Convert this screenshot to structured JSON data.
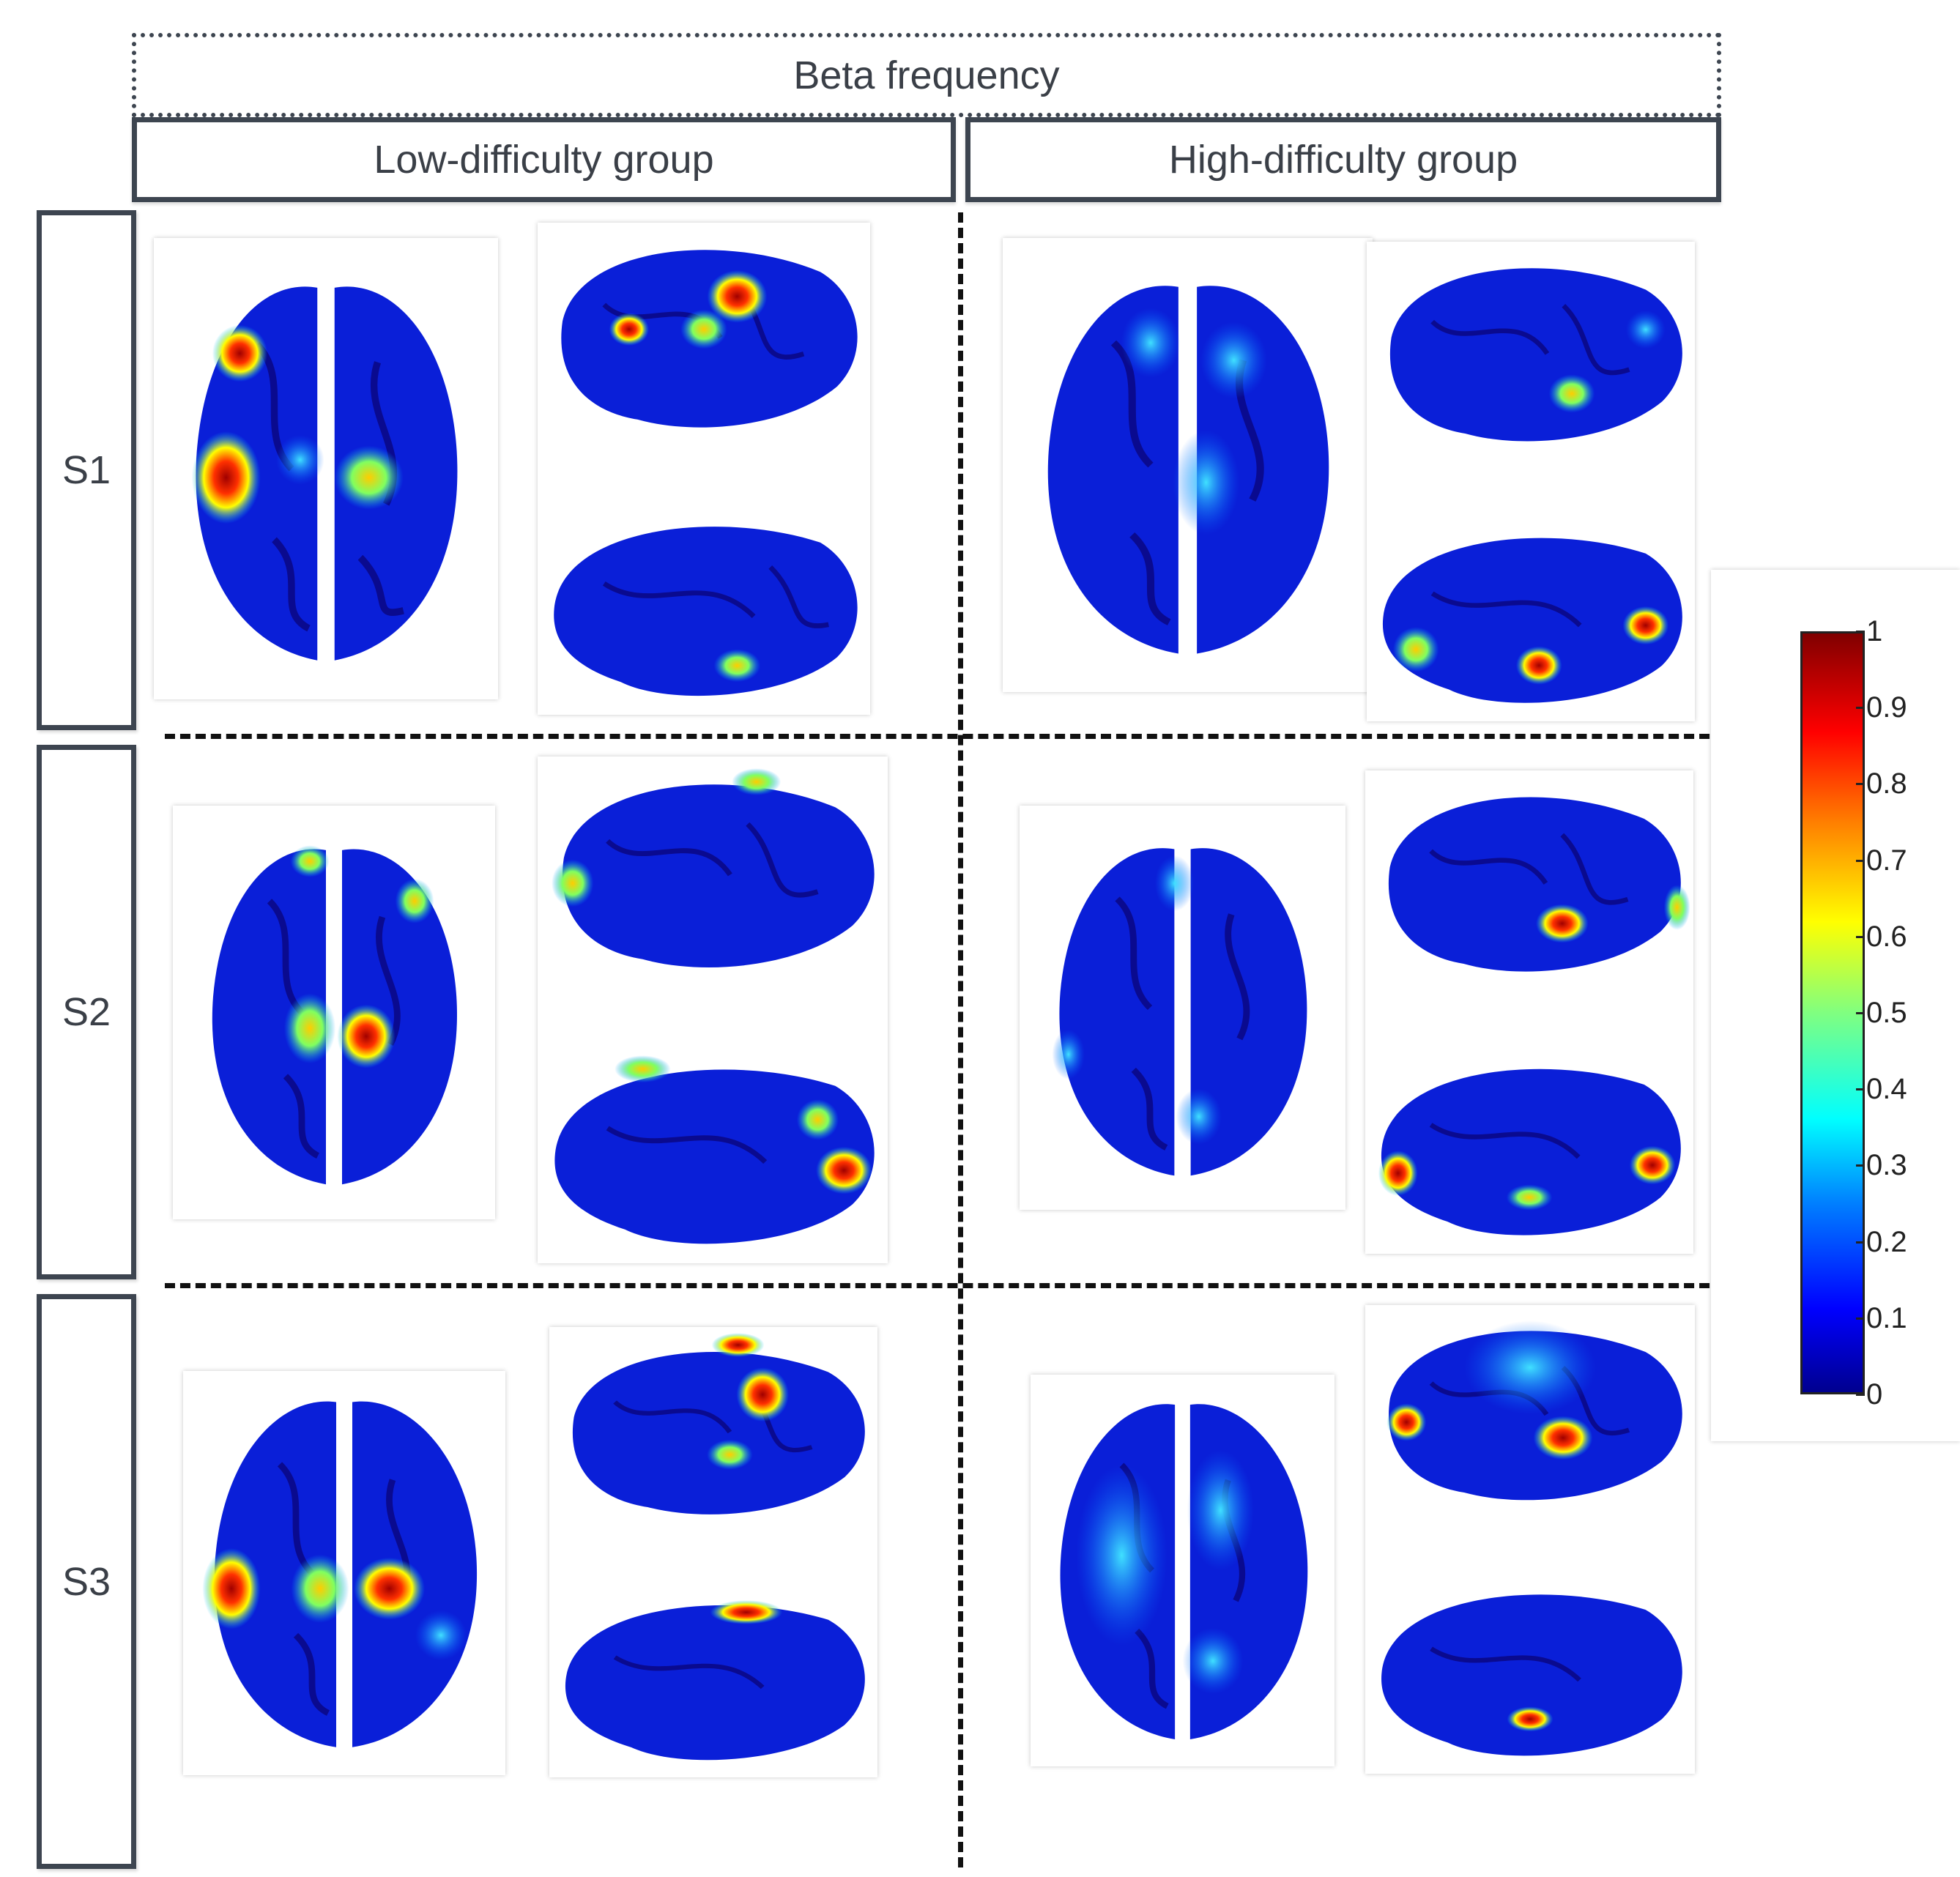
{
  "header": {
    "title": "Beta frequency",
    "groups": [
      "Low-difficulty group",
      "High-difficulty group"
    ]
  },
  "rows": [
    "S1",
    "S2",
    "S3"
  ],
  "colorbar": {
    "ticks": [
      "1",
      "0.9",
      "0.8",
      "0.7",
      "0.6",
      "0.5",
      "0.4",
      "0.3",
      "0.2",
      "0.1",
      "0"
    ],
    "colormap": [
      "#00008f",
      "#0000ff",
      "#0080ff",
      "#00ffff",
      "#80ff80",
      "#ffff00",
      "#ff8000",
      "#ff0000",
      "#800000"
    ]
  },
  "panels": [
    {
      "row": "S1",
      "group": "Low-difficulty group",
      "views": [
        "top",
        "lateral",
        "lateral"
      ]
    },
    {
      "row": "S1",
      "group": "High-difficulty group",
      "views": [
        "top",
        "lateral",
        "lateral"
      ]
    },
    {
      "row": "S2",
      "group": "Low-difficulty group",
      "views": [
        "top",
        "lateral",
        "lateral"
      ]
    },
    {
      "row": "S2",
      "group": "High-difficulty group",
      "views": [
        "top",
        "lateral",
        "lateral"
      ]
    },
    {
      "row": "S3",
      "group": "Low-difficulty group",
      "views": [
        "top",
        "lateral",
        "lateral"
      ]
    },
    {
      "row": "S3",
      "group": "High-difficulty group",
      "views": [
        "top",
        "lateral",
        "lateral"
      ]
    }
  ]
}
